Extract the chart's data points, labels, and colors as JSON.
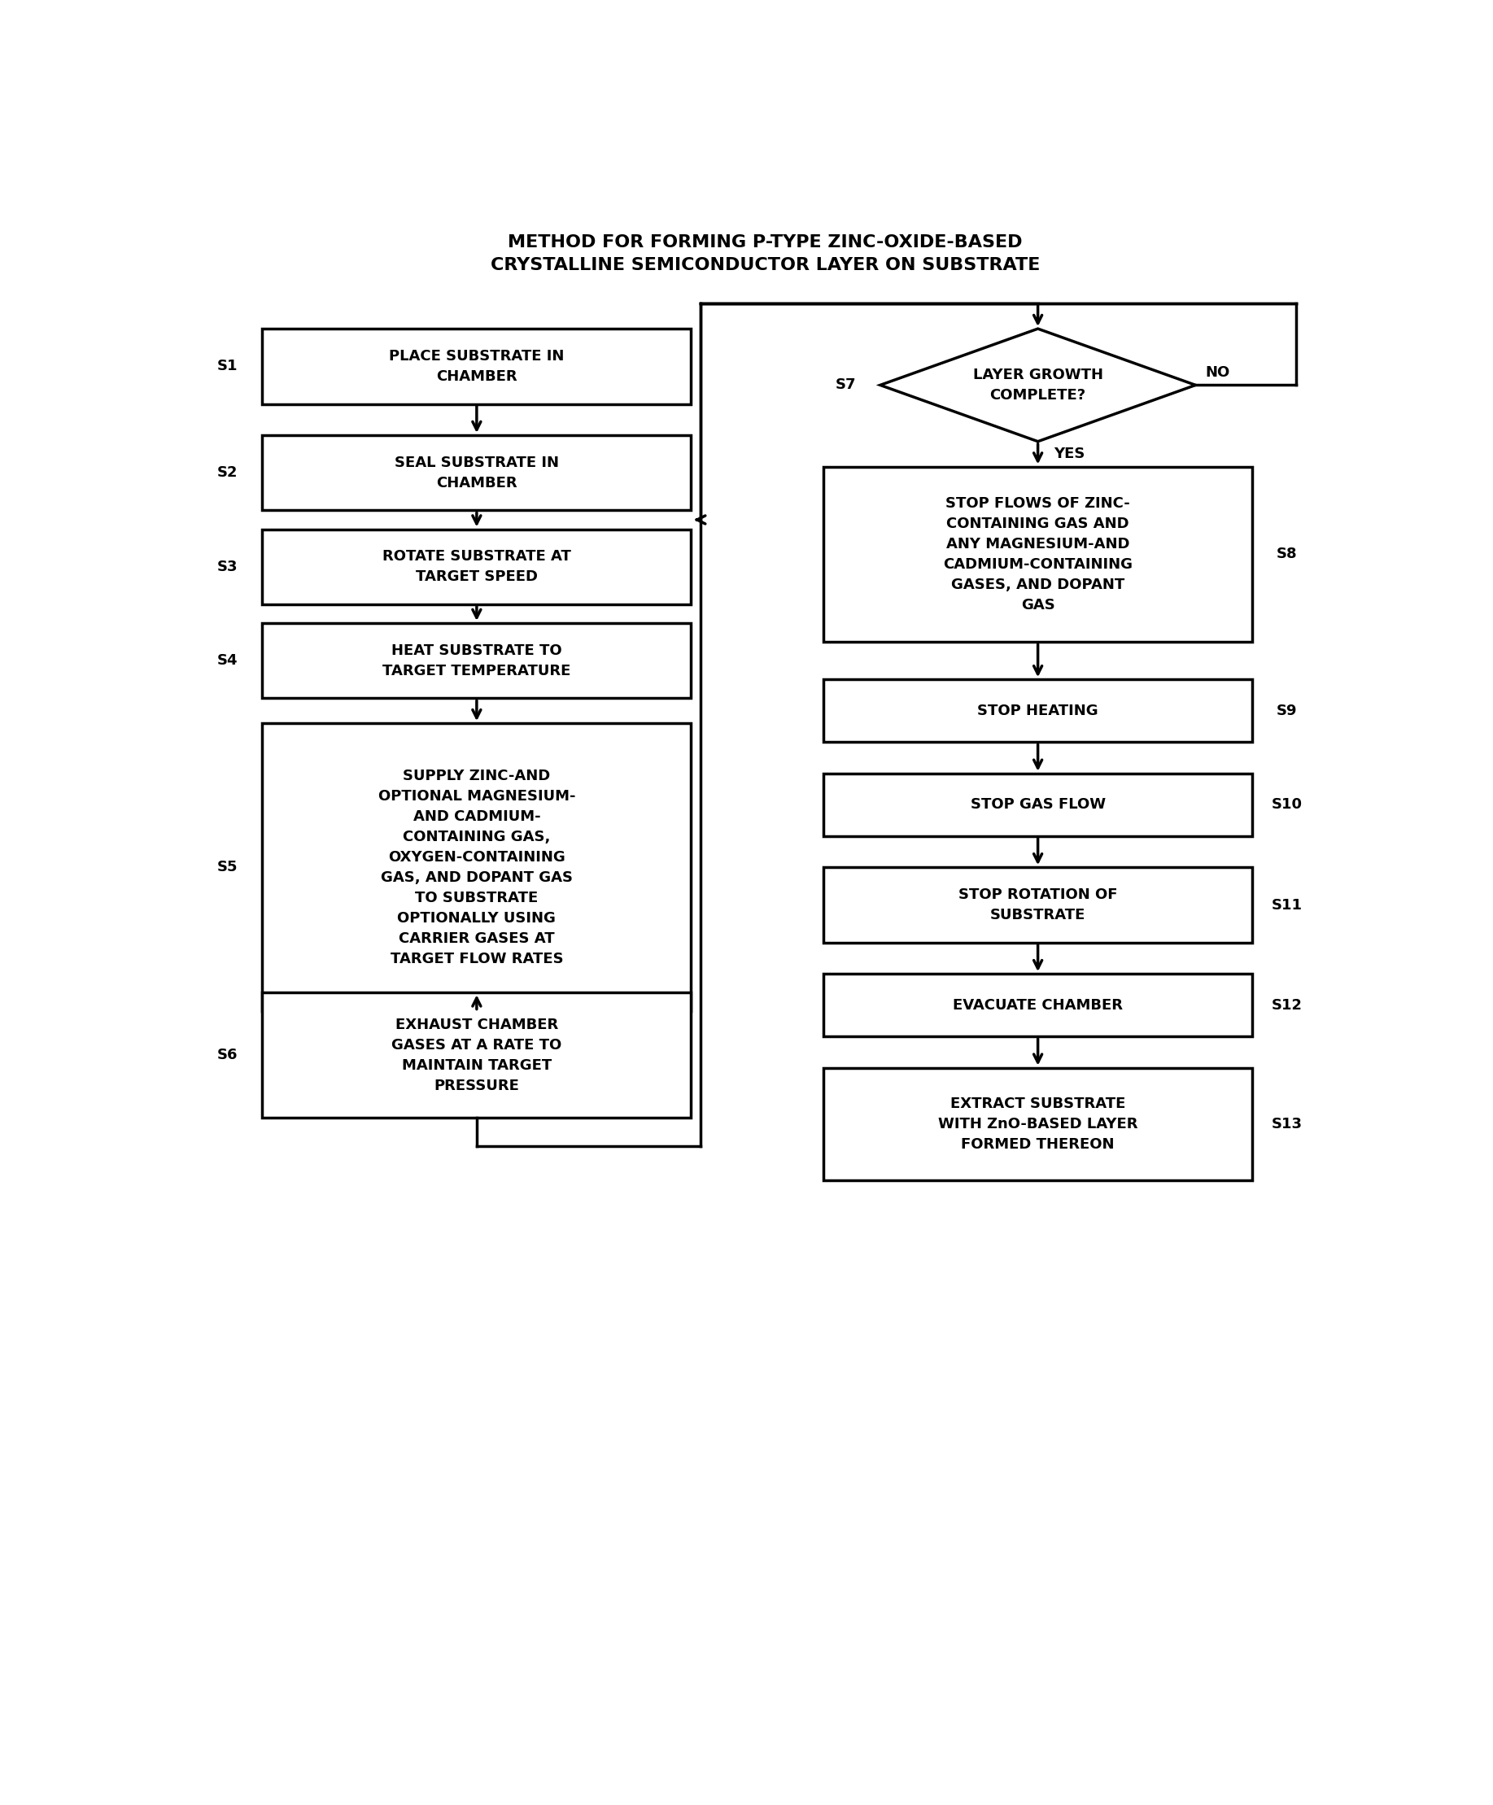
{
  "title_line1": "METHOD FOR FORMING P-TYPE ZINC-OXIDE-BASED",
  "title_line2": "CRYSTALLINE SEMICONDUCTOR LAYER ON SUBSTRATE",
  "left_steps": [
    {
      "id": "S1",
      "text": "PLACE SUBSTRATE IN\nCHAMBER"
    },
    {
      "id": "S2",
      "text": "SEAL SUBSTRATE IN\nCHAMBER"
    },
    {
      "id": "S3",
      "text": "ROTATE SUBSTRATE AT\nTARGET SPEED"
    },
    {
      "id": "S4",
      "text": "HEAT SUBSTRATE TO\nTARGET TEMPERATURE"
    },
    {
      "id": "S5",
      "text": "SUPPLY ZINC-AND\nOPTIONAL MAGNESIUM-\nAND CADMIUM-\nCONTAINING GAS,\nOXYGEN-CONTAINING\nGAS, AND DOPANT GAS\nTO SUBSTRATE\nOPTIONALLY USING\nCARRIER GASES AT\nTARGET FLOW RATES"
    },
    {
      "id": "S6",
      "text": "EXHAUST CHAMBER\nGASES AT A RATE TO\nMAINTAIN TARGET\nPRESSURE"
    }
  ],
  "right_steps": [
    {
      "id": "S7",
      "text": "LAYER GROWTH\nCOMPLETE?",
      "shape": "diamond"
    },
    {
      "id": "S8",
      "text": "STOP FLOWS OF ZINC-\nCONTAINING GAS AND\nANY MAGNESIUM-AND\nCADMIUM-CONTAINING\nGASES, AND DOPANT\nGAS"
    },
    {
      "id": "S9",
      "text": "STOP HEATING"
    },
    {
      "id": "S10",
      "text": "STOP GAS FLOW"
    },
    {
      "id": "S11",
      "text": "STOP ROTATION OF\nSUBSTRATE"
    },
    {
      "id": "S12",
      "text": "EVACUATE CHAMBER"
    },
    {
      "id": "S13",
      "text": "EXTRACT SUBSTRATE\nWITH ZnO-BASED LAYER\nFORMED THEREON"
    }
  ],
  "bg_color": "#ffffff",
  "font_size": 13,
  "title_font_size": 16,
  "lw": 2.5
}
